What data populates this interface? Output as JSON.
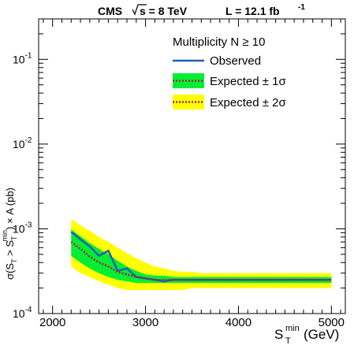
{
  "header": {
    "cms": "CMS",
    "sqrt_s": "s = 8 TeV",
    "lumi_prefix": "L = 12.1 fb",
    "lumi_exp": "-1"
  },
  "colors": {
    "observed": "#1f5fb0",
    "band_1sigma": "#00ee33",
    "band_2sigma": "#ffff00",
    "expected": "#b0203a"
  },
  "chart_data": {
    "type": "line",
    "x_scale": "linear",
    "y_scale": "log",
    "xlim": [
      1850,
      5150
    ],
    "ylim": [
      0.0001,
      0.3
    ],
    "x_ticks": [
      2000,
      3000,
      4000,
      5000
    ],
    "x_tick_labels": [
      "2000",
      "3000",
      "4000",
      "5000"
    ],
    "y_ticks": [
      0.0001,
      0.001,
      0.01,
      0.1
    ],
    "y_tick_labels": [
      {
        "base": "10",
        "exp": "-4"
      },
      {
        "base": "10",
        "exp": "-3"
      },
      {
        "base": "10",
        "exp": "-2"
      },
      {
        "base": "10",
        "exp": "-1"
      }
    ],
    "xlabel": {
      "main": "S",
      "sub": "T",
      "sup": "min",
      "unit": " (GeV)"
    },
    "ylabel": "σ(S_T > S_T^min) × A (pb)",
    "legend": {
      "title": "Multiplicity N ≥ 10",
      "entries": [
        {
          "key": "observed",
          "label": "Observed"
        },
        {
          "key": "expected_1s",
          "label": "Expected ± 1σ"
        },
        {
          "key": "expected_2s",
          "label": "Expected ± 2σ"
        }
      ]
    },
    "x": [
      2200,
      2300,
      2400,
      2500,
      2600,
      2700,
      2800,
      2900,
      3000,
      3100,
      3200,
      3300,
      3400,
      3500,
      3600,
      3700,
      3800,
      3900,
      4000,
      4100,
      4200,
      4300,
      4400,
      4500,
      4600,
      4700,
      4800,
      4900,
      5000
    ],
    "series": [
      {
        "name": "Observed",
        "values": [
          0.00092,
          0.00075,
          0.00062,
          0.00048,
          0.00055,
          0.00032,
          0.00034,
          0.00027,
          0.00026,
          0.00025,
          0.00024,
          0.00025,
          0.00025,
          0.00025,
          0.00025,
          0.00025,
          0.00025,
          0.00025,
          0.00025,
          0.00025,
          0.00025,
          0.00025,
          0.00025,
          0.00025,
          0.00025,
          0.00025,
          0.00025,
          0.00025,
          0.00025
        ]
      },
      {
        "name": "Expected",
        "values": [
          0.0007,
          0.00058,
          0.00047,
          0.0004,
          0.00036,
          0.00031,
          0.00029,
          0.00027,
          0.00026,
          0.00025,
          0.00025,
          0.00025,
          0.00025,
          0.00025,
          0.00025,
          0.00025,
          0.00025,
          0.00025,
          0.00025,
          0.00025,
          0.00025,
          0.00025,
          0.00025,
          0.00025,
          0.00025,
          0.00025,
          0.00025,
          0.00025,
          0.00025
        ]
      }
    ],
    "band_1sigma": {
      "low": [
        0.00048,
        0.0004,
        0.00034,
        0.0003,
        0.00027,
        0.00025,
        0.00024,
        0.00023,
        0.00023,
        0.00023,
        0.00023,
        0.00023,
        0.00023,
        0.00023,
        0.00023,
        0.00023,
        0.00023,
        0.00023,
        0.00023,
        0.00023,
        0.00023,
        0.00023,
        0.00023,
        0.00023,
        0.00023,
        0.00023,
        0.00023,
        0.00023,
        0.00023
      ],
      "high": [
        0.00098,
        0.00082,
        0.00068,
        0.00058,
        0.0005,
        0.00042,
        0.00036,
        0.00032,
        0.00029,
        0.00028,
        0.00028,
        0.00027,
        0.00027,
        0.00027,
        0.00027,
        0.00027,
        0.00027,
        0.00027,
        0.00027,
        0.00027,
        0.00027,
        0.00027,
        0.00027,
        0.00027,
        0.00027,
        0.00027,
        0.00027,
        0.00027,
        0.00027
      ]
    },
    "band_2sigma": {
      "low": [
        0.00036,
        0.0003,
        0.00027,
        0.00024,
        0.00022,
        0.0002,
        0.00019,
        0.00019,
        0.00019,
        0.00019,
        0.00019,
        0.00019,
        0.00019,
        0.0002,
        0.0002,
        0.0002,
        0.0002,
        0.0002,
        0.0002,
        0.0002,
        0.0002,
        0.0002,
        0.0002,
        0.0002,
        0.0002,
        0.0002,
        0.0002,
        0.0002,
        0.0002
      ],
      "high": [
        0.0013,
        0.0011,
        0.00095,
        0.0008,
        0.0007,
        0.0006,
        0.00052,
        0.00045,
        0.0004,
        0.00036,
        0.00034,
        0.00032,
        0.00031,
        0.00031,
        0.0003,
        0.0003,
        0.0003,
        0.0003,
        0.0003,
        0.0003,
        0.0003,
        0.0003,
        0.0003,
        0.0003,
        0.0003,
        0.0003,
        0.0003,
        0.0003,
        0.0003
      ]
    }
  }
}
